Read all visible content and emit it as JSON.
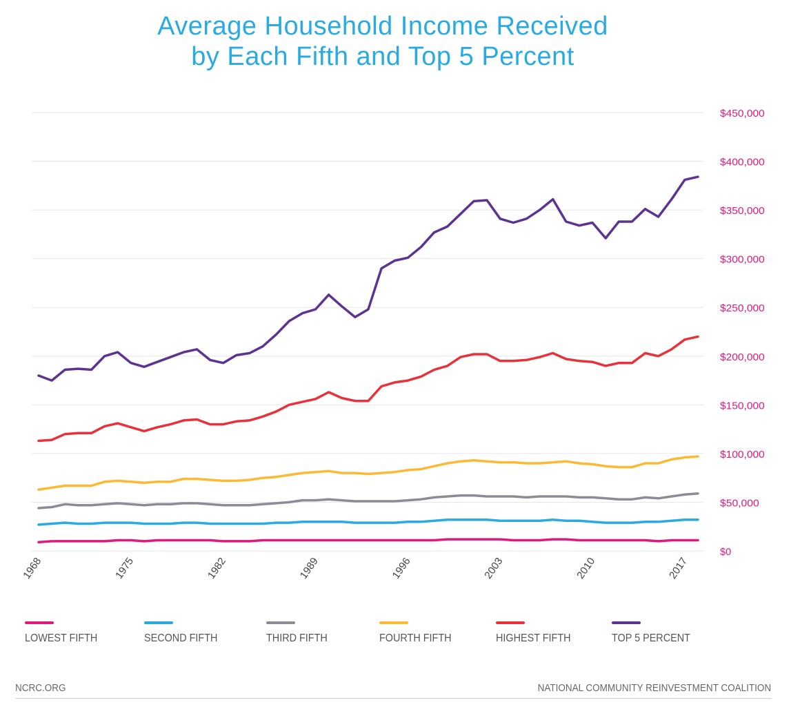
{
  "chart_data": {
    "type": "line",
    "title": "Average Household Income Received by Each Fifth and Top 5 Percent",
    "title_lines": [
      "Average Household Income Received",
      "by Each Fifth and Top 5 Percent"
    ],
    "xlabel": "",
    "ylabel": "",
    "x": [
      1968,
      1969,
      1970,
      1971,
      1972,
      1973,
      1974,
      1975,
      1976,
      1977,
      1978,
      1979,
      1980,
      1981,
      1982,
      1983,
      1984,
      1985,
      1986,
      1987,
      1988,
      1989,
      1990,
      1991,
      1992,
      1993,
      1994,
      1995,
      1996,
      1997,
      1998,
      1999,
      2000,
      2001,
      2002,
      2003,
      2004,
      2005,
      2006,
      2007,
      2008,
      2009,
      2010,
      2011,
      2012,
      2013,
      2014,
      2015,
      2016,
      2017,
      2018
    ],
    "xticks": [
      "1968",
      "1975",
      "1982",
      "1989",
      "1996",
      "2003",
      "2010",
      "2017"
    ],
    "xtick_values": [
      1968,
      1975,
      1982,
      1989,
      1996,
      2003,
      2010,
      2017
    ],
    "ylim": [
      0,
      450000
    ],
    "yticks": [
      "$0",
      "$50,000",
      "$100,000",
      "$150,000",
      "$200,000",
      "$250,000",
      "$300,000",
      "$350,000",
      "$400,000",
      "$450,000"
    ],
    "ytick_values": [
      0,
      50000,
      100000,
      150000,
      200000,
      250000,
      300000,
      350000,
      400000,
      450000
    ],
    "y_axis_position": "right",
    "grid": true,
    "legend_position": "bottom",
    "series": [
      {
        "name": "LOWEST FIFTH",
        "color": "#e0197d",
        "values": [
          9000,
          10000,
          10000,
          10000,
          10000,
          10000,
          11000,
          11000,
          10000,
          11000,
          11000,
          11000,
          11000,
          11000,
          10000,
          10000,
          10000,
          11000,
          11000,
          11000,
          11000,
          11000,
          11000,
          11000,
          11000,
          11000,
          11000,
          11000,
          11000,
          11000,
          11000,
          12000,
          12000,
          12000,
          12000,
          12000,
          11000,
          11000,
          11000,
          12000,
          12000,
          11000,
          11000,
          11000,
          11000,
          11000,
          11000,
          10000,
          11000,
          11000,
          11000
        ]
      },
      {
        "name": "SECOND FIFTH",
        "color": "#29abe2",
        "values": [
          27000,
          28000,
          29000,
          28000,
          28000,
          29000,
          29000,
          29000,
          28000,
          28000,
          28000,
          29000,
          29000,
          28000,
          28000,
          28000,
          28000,
          28000,
          29000,
          29000,
          30000,
          30000,
          30000,
          30000,
          29000,
          29000,
          29000,
          29000,
          30000,
          30000,
          31000,
          32000,
          32000,
          32000,
          32000,
          31000,
          31000,
          31000,
          31000,
          32000,
          31000,
          31000,
          30000,
          29000,
          29000,
          29000,
          30000,
          30000,
          31000,
          32000,
          32000
        ]
      },
      {
        "name": "THIRD FIFTH",
        "color": "#8c8c96",
        "values": [
          44000,
          45000,
          48000,
          47000,
          47000,
          48000,
          49000,
          48000,
          47000,
          48000,
          48000,
          49000,
          49000,
          48000,
          47000,
          47000,
          47000,
          48000,
          49000,
          50000,
          52000,
          52000,
          53000,
          52000,
          51000,
          51000,
          51000,
          51000,
          52000,
          53000,
          55000,
          56000,
          57000,
          57000,
          56000,
          56000,
          56000,
          55000,
          56000,
          56000,
          56000,
          55000,
          55000,
          54000,
          53000,
          53000,
          55000,
          54000,
          56000,
          58000,
          59000
        ]
      },
      {
        "name": "FOURTH FIFTH",
        "color": "#fbb934",
        "values": [
          63000,
          65000,
          67000,
          67000,
          67000,
          71000,
          72000,
          71000,
          70000,
          71000,
          71000,
          74000,
          74000,
          73000,
          72000,
          72000,
          73000,
          75000,
          76000,
          78000,
          80000,
          81000,
          82000,
          80000,
          80000,
          79000,
          80000,
          81000,
          83000,
          84000,
          87000,
          90000,
          92000,
          93000,
          92000,
          91000,
          91000,
          90000,
          90000,
          91000,
          92000,
          90000,
          89000,
          87000,
          86000,
          86000,
          90000,
          90000,
          94000,
          96000,
          97000
        ]
      },
      {
        "name": "HIGHEST FIFTH",
        "color": "#e8313a",
        "values": [
          113000,
          114000,
          120000,
          121000,
          121000,
          128000,
          131000,
          127000,
          123000,
          127000,
          130000,
          134000,
          135000,
          130000,
          130000,
          133000,
          134000,
          138000,
          143000,
          150000,
          153000,
          156000,
          163000,
          157000,
          154000,
          154000,
          169000,
          173000,
          175000,
          179000,
          186000,
          190000,
          199000,
          202000,
          202000,
          195000,
          195000,
          196000,
          199000,
          203000,
          197000,
          195000,
          194000,
          190000,
          193000,
          193000,
          203000,
          200000,
          207000,
          217000,
          220000
        ]
      },
      {
        "name": "TOP 5 PERCENT",
        "color": "#5c3391",
        "values": [
          180000,
          175000,
          186000,
          187000,
          186000,
          200000,
          204000,
          193000,
          189000,
          194000,
          199000,
          204000,
          207000,
          196000,
          193000,
          201000,
          203000,
          210000,
          222000,
          236000,
          244000,
          248000,
          263000,
          251000,
          240000,
          248000,
          290000,
          298000,
          301000,
          312000,
          327000,
          333000,
          346000,
          359000,
          360000,
          341000,
          337000,
          341000,
          350000,
          361000,
          338000,
          334000,
          337000,
          321000,
          338000,
          338000,
          351000,
          343000,
          361000,
          381000,
          384000
        ]
      }
    ]
  },
  "footer": {
    "left": "NCRC.ORG",
    "right": "NATIONAL COMMUNITY REINVESTMENT COALITION"
  },
  "colors": {
    "title": "#29abe2",
    "y_tick": "#e0197d",
    "grid": "#e6e6e6"
  }
}
